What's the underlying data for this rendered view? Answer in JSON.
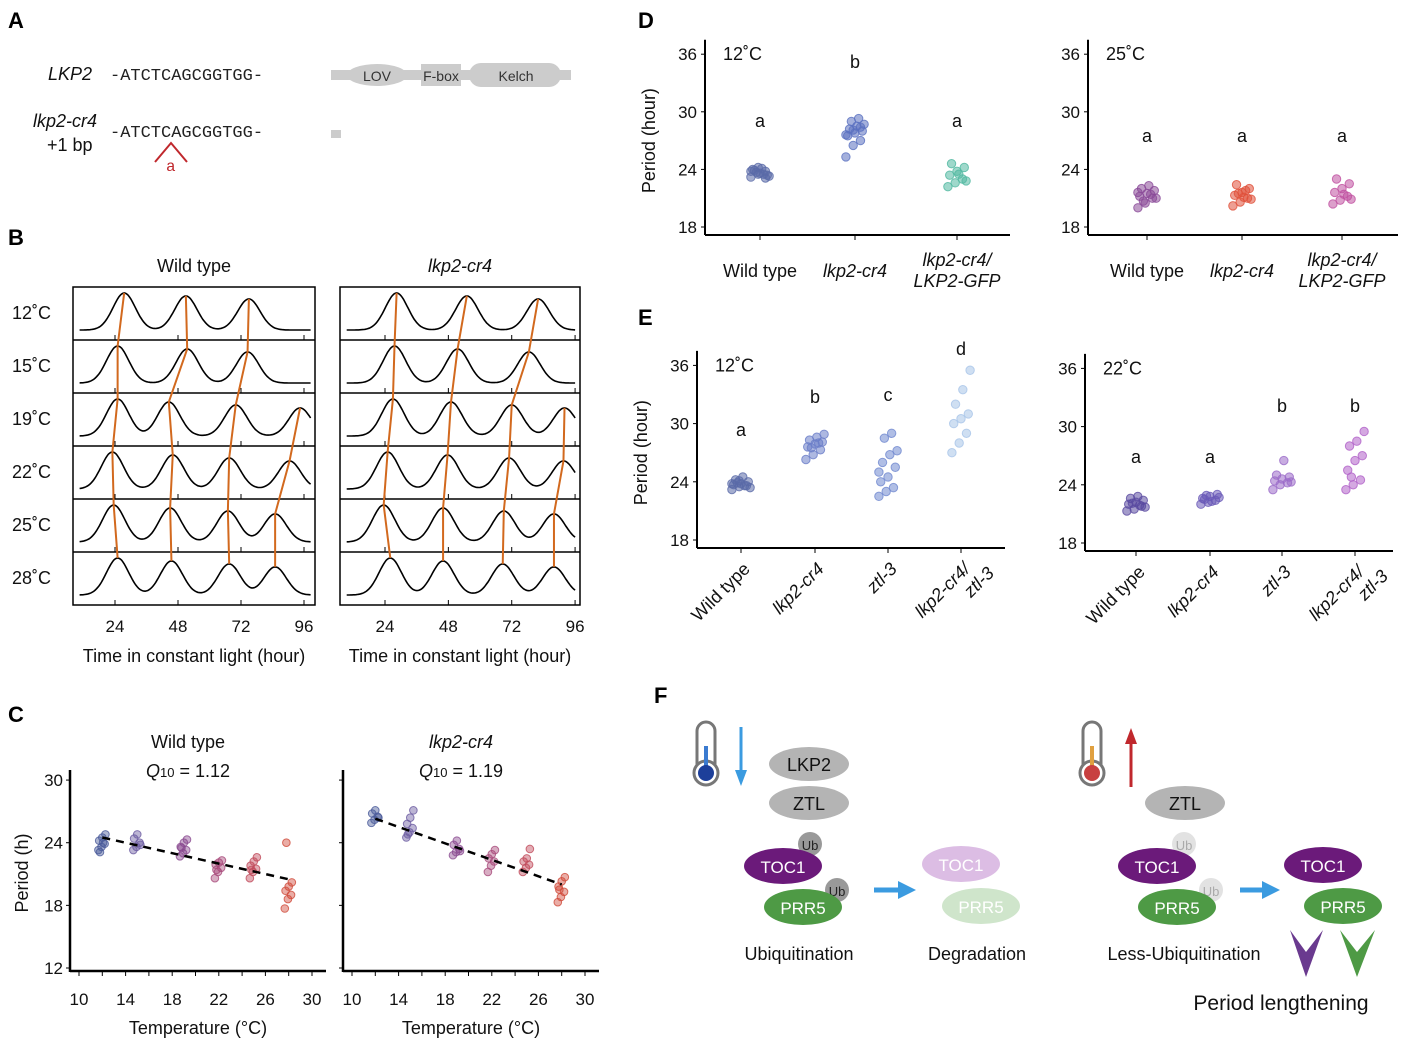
{
  "panels": {
    "a": "A",
    "b": "B",
    "c": "C",
    "d": "D",
    "e": "E",
    "f": "F"
  },
  "panel_a": {
    "gene_wt": "LKP2",
    "seq_wt": "-ATCTCAGCGGTGG-",
    "gene_mut": "lkp2-cr4",
    "mut_note": "+1 bp",
    "seq_mut": "-ATCTCAGCGGTGG-",
    "insertion": "a",
    "domains": [
      "LOV",
      "F-box",
      "Kelch"
    ],
    "insertion_color": "#c0282d"
  },
  "panel_f": {
    "left": {
      "lkp2": "LKP2",
      "ztl": "ZTL",
      "ub1": "Ub",
      "ub2": "Ub",
      "toc1": "TOC1",
      "prr5": "PRR5",
      "toc1_faded": "TOC1",
      "prr5_faded": "PRR5",
      "label1": "Ubiquitination",
      "label2": "Degradation"
    },
    "right": {
      "ztl": "ZTL",
      "ub1": "Ub",
      "ub2": "Ub",
      "toc1": "TOC1",
      "prr5": "PRR5",
      "toc1_b": "TOC1",
      "prr5_b": "PRR5",
      "label1": "Less-Ubiquitination",
      "label2": "Period lengthening"
    },
    "colors": {
      "toc1": "#6b1a7a",
      "prr5": "#4e9a45",
      "cold": "#3b9be0",
      "warm": "#c0282d"
    }
  },
  "chart_data": [
    {
      "id": "B-wt",
      "type": "line",
      "title": "Wild type",
      "xlabel": "Time in constant light (hour)",
      "xticks": [
        24,
        48,
        72,
        96
      ],
      "xlim": [
        8,
        100
      ],
      "rows": [
        {
          "label": "12˚C",
          "peaks": [
            27.5,
            51,
            75
          ]
        },
        {
          "label": "15˚C",
          "peaks": [
            25,
            51.5,
            74.5
          ]
        },
        {
          "label": "19˚C",
          "peaks": [
            25,
            44.5,
            70,
            94.5
          ]
        },
        {
          "label": "22˚C",
          "peaks": [
            23,
            46,
            67.5,
            90.5
          ]
        },
        {
          "label": "25˚C",
          "peaks": [
            23.5,
            45,
            67,
            85
          ]
        },
        {
          "label": "28˚C",
          "peaks": [
            25,
            45.5,
            67.5,
            85
          ]
        }
      ]
    },
    {
      "id": "B-cr4",
      "type": "line",
      "title": "lkp2-cr4",
      "xlabel": "Time in constant light (hour)",
      "xticks": [
        24,
        48,
        72,
        96
      ],
      "xlim": [
        8,
        100
      ],
      "rows": [
        {
          "label": "12˚C",
          "peaks": [
            28.4,
            55,
            82
          ]
        },
        {
          "label": "15˚C",
          "peaks": [
            27.6,
            51.5,
            78.5
          ]
        },
        {
          "label": "19˚C",
          "peaks": [
            27,
            49,
            72,
            92
          ]
        },
        {
          "label": "22˚C",
          "peaks": [
            25,
            47.7,
            71,
            91.6
          ]
        },
        {
          "label": "25˚C",
          "peaks": [
            23.5,
            46,
            69,
            88
          ]
        },
        {
          "label": "28˚C",
          "peaks": [
            26,
            46,
            68.6,
            88
          ]
        }
      ]
    },
    {
      "id": "C-wt",
      "type": "scatter",
      "title": "Wild type",
      "q10": {
        "q": "Q",
        "sub": "10",
        "value": "= 1.12"
      },
      "xlabel": "Temperature (°C)",
      "ylabel": "Period (h)",
      "xlim": [
        10,
        30
      ],
      "ylim": [
        12,
        30
      ],
      "xticks": [
        10,
        14,
        18,
        22,
        26,
        30
      ],
      "yticks": [
        12,
        18,
        24,
        30
      ],
      "fit": [
        [
          12,
          24.5
        ],
        [
          28,
          20.5
        ]
      ],
      "groups": [
        {
          "x": 12,
          "color": "#4a5a9a",
          "values": [
            23.3,
            23.6,
            23.9,
            24.2,
            24.5,
            24.8,
            23.1,
            24
          ]
        },
        {
          "x": 15,
          "color": "#6a5aa0",
          "values": [
            23.3,
            23.6,
            24,
            24.4,
            24.8,
            23.8
          ]
        },
        {
          "x": 19,
          "color": "#8a4a90",
          "values": [
            22.7,
            23,
            23.3,
            23.6,
            24,
            24.3,
            23.5
          ]
        },
        {
          "x": 22,
          "color": "#a84a7a",
          "values": [
            20.6,
            21.2,
            21.6,
            21.9,
            22.1,
            22.3,
            21.4
          ]
        },
        {
          "x": 25,
          "color": "#c04a5a",
          "values": [
            20.6,
            21.2,
            21.5,
            21.8,
            22.2,
            22.6,
            21.4
          ]
        },
        {
          "x": 28,
          "color": "#d04a3a",
          "values": [
            17.7,
            18.6,
            19,
            19.4,
            19.8,
            20.2,
            24
          ]
        }
      ]
    },
    {
      "id": "C-cr4",
      "type": "scatter",
      "title": "lkp2-cr4",
      "q10": {
        "q": "Q",
        "sub": "10",
        "value": "= 1.19"
      },
      "xlabel": "Temperature (°C)",
      "xlim": [
        10,
        30
      ],
      "ylim": [
        12,
        30
      ],
      "xticks": [
        10,
        14,
        18,
        22,
        26,
        30
      ],
      "yticks": [
        12,
        18,
        24,
        30
      ],
      "fit": [
        [
          12,
          26.3
        ],
        [
          28,
          20
        ]
      ],
      "groups": [
        {
          "x": 12,
          "color": "#4a5a9a",
          "values": [
            25.9,
            26.2,
            26.5,
            26.8,
            27.1,
            26.4
          ]
        },
        {
          "x": 15,
          "color": "#6a5aa0",
          "values": [
            24.5,
            25,
            25.4,
            25.8,
            26.4,
            27.1,
            24.8
          ]
        },
        {
          "x": 19,
          "color": "#8a4a90",
          "values": [
            22.8,
            23.1,
            23.4,
            23.8,
            24.2,
            23.2
          ]
        },
        {
          "x": 22,
          "color": "#a84a7a",
          "values": [
            21.2,
            21.8,
            22.2,
            22.5,
            22.9,
            23.3
          ]
        },
        {
          "x": 25,
          "color": "#c04a5a",
          "values": [
            21.2,
            21.6,
            21.9,
            22.2,
            22.5,
            23.4
          ]
        },
        {
          "x": 28,
          "color": "#d04a3a",
          "values": [
            18.3,
            18.8,
            19.3,
            19.8,
            20.3,
            20.7,
            19.5
          ]
        }
      ]
    },
    {
      "id": "D-12",
      "type": "scatter",
      "title": "12˚C",
      "ylabel": "Period (hour)",
      "ylim": [
        18,
        36
      ],
      "yticks": [
        18,
        24,
        30,
        36
      ],
      "categories": [
        "Wild type",
        "lkp2-cr4",
        "lkp2-cr4/\nLKP2-GFP"
      ],
      "groups": [
        {
          "letter": "a",
          "color": "#5a6aa8",
          "values": [
            23.2,
            23.5,
            23.8,
            24,
            23.6,
            23.4,
            23.9,
            24.1,
            23.3,
            23.7,
            23.5,
            23.8,
            24.2,
            23.1
          ]
        },
        {
          "letter": "b",
          "color": "#5a70c0",
          "values": [
            25.3,
            26.5,
            27,
            27.5,
            27.8,
            28,
            28.2,
            28.5,
            28.7,
            29,
            29.3,
            27.6,
            28.1,
            28.4
          ]
        },
        {
          "letter": "a",
          "color": "#50b8a0",
          "values": [
            22.2,
            22.6,
            23,
            23.4,
            23.8,
            24.2,
            24.6,
            23.5,
            22.8
          ]
        }
      ]
    },
    {
      "id": "D-25",
      "type": "scatter",
      "title": "25˚C",
      "ylim": [
        18,
        36
      ],
      "yticks": [
        18,
        24,
        30,
        36
      ],
      "categories": [
        "Wild type",
        "lkp2-cr4",
        "lkp2-cr4/\nLKP2-GFP"
      ],
      "groups": [
        {
          "letter": "a",
          "color": "#8a4a98",
          "values": [
            20,
            20.5,
            21,
            21.2,
            21.5,
            21.8,
            22,
            22.3,
            21,
            20.7,
            21.4,
            21.6
          ]
        },
        {
          "letter": "a",
          "color": "#e0503a",
          "values": [
            20.2,
            20.6,
            21,
            21.3,
            21.6,
            22,
            22.4,
            21.1,
            20.9,
            21.5,
            21.8
          ]
        },
        {
          "letter": "a",
          "color": "#c050a0",
          "values": [
            20.4,
            20.8,
            21.2,
            21.6,
            22,
            22.5,
            23,
            21.4,
            20.9
          ]
        }
      ]
    },
    {
      "id": "E-12",
      "type": "scatter",
      "title": "12˚C",
      "ylabel": "Period (hour)",
      "ylim": [
        18,
        36
      ],
      "yticks": [
        18,
        24,
        30,
        36
      ],
      "categories": [
        "Wild type",
        "lkp2-cr4",
        "ztl-3",
        "lkp2-cr4/\nztl-3"
      ],
      "groups": [
        {
          "letter": "a",
          "color": "#5a6aa8",
          "values": [
            23.2,
            23.5,
            23.6,
            23.7,
            23.8,
            24,
            24.2,
            24.5,
            23.4,
            23.9,
            23.6,
            23.8,
            24.1
          ]
        },
        {
          "letter": "b",
          "color": "#6a7dc8",
          "values": [
            26.3,
            26.8,
            27.3,
            27.6,
            27.9,
            28.1,
            28.3,
            28.6,
            28.9,
            27.5,
            28
          ]
        },
        {
          "letter": "c",
          "color": "#7088d0",
          "values": [
            22.5,
            23,
            23.4,
            24,
            24.5,
            25.5,
            26,
            26.8,
            27.2,
            28.5,
            29,
            25
          ]
        },
        {
          "letter": "d",
          "color": "#a8c4e8",
          "values": [
            27,
            28,
            29,
            30,
            30.5,
            31,
            32,
            33.5,
            35.5
          ]
        }
      ]
    },
    {
      "id": "E-22",
      "type": "scatter",
      "title": "22˚C",
      "ylim": [
        18,
        36
      ],
      "yticks": [
        18,
        24,
        30,
        36
      ],
      "categories": [
        "Wild type",
        "lkp2-cr4",
        "ztl-3",
        "lkp2-cr4/\nztl-3"
      ],
      "groups": [
        {
          "letter": "a",
          "color": "#5a4aa0",
          "values": [
            21.3,
            21.5,
            21.8,
            22,
            22.2,
            22.4,
            22.6,
            22.8,
            21.7,
            22.1,
            21.9
          ]
        },
        {
          "letter": "a",
          "color": "#6a5ab8",
          "values": [
            22,
            22.2,
            22.4,
            22.6,
            22.8,
            23,
            22.5,
            22.3,
            22.7,
            22.9
          ]
        },
        {
          "letter": "b",
          "color": "#9a6ac8",
          "values": [
            23.5,
            24,
            24.2,
            24.4,
            24.6,
            24.8,
            25,
            26.5,
            24.3
          ]
        },
        {
          "letter": "b",
          "color": "#b060c8",
          "values": [
            23.5,
            24,
            24.5,
            25.5,
            26.5,
            27,
            28,
            28.5,
            29.5,
            24.8
          ]
        }
      ]
    }
  ]
}
